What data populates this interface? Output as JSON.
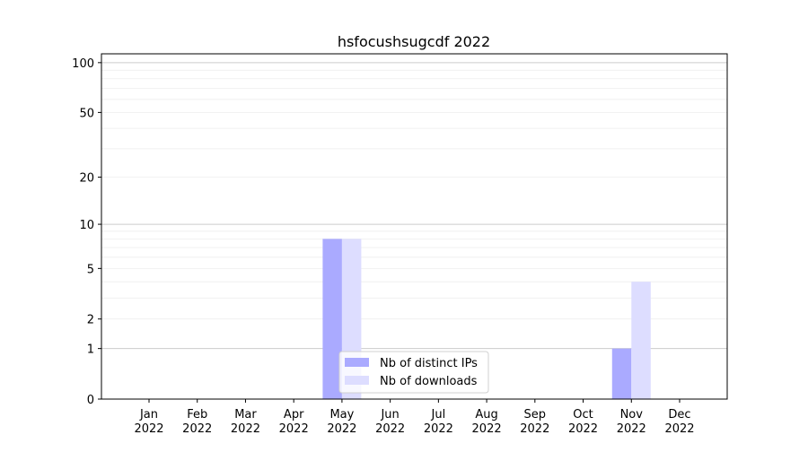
{
  "chart_data": {
    "type": "bar",
    "title": "hsfocushsugcdf 2022",
    "xlabel": "",
    "ylabel": "",
    "y_scale": "log10(1+y)",
    "ylim": [
      0,
      113
    ],
    "grid": true,
    "legend_position": "lower center",
    "categories": [
      "Jan\n2022",
      "Feb\n2022",
      "Mar\n2022",
      "Apr\n2022",
      "May\n2022",
      "Jun\n2022",
      "Jul\n2022",
      "Aug\n2022",
      "Sep\n2022",
      "Oct\n2022",
      "Nov\n2022",
      "Dec\n2022"
    ],
    "y_ticks": [
      0,
      1,
      2,
      5,
      10,
      20,
      50,
      100
    ],
    "series": [
      {
        "name": "Nb of distinct IPs",
        "color": "#aaaaff",
        "values": [
          0,
          0,
          0,
          0,
          8,
          0,
          0,
          0,
          0,
          0,
          1,
          0
        ]
      },
      {
        "name": "Nb of downloads",
        "color": "#ddddff",
        "values": [
          0,
          0,
          0,
          0,
          8,
          0,
          0,
          0,
          0,
          0,
          4,
          0
        ]
      }
    ]
  }
}
